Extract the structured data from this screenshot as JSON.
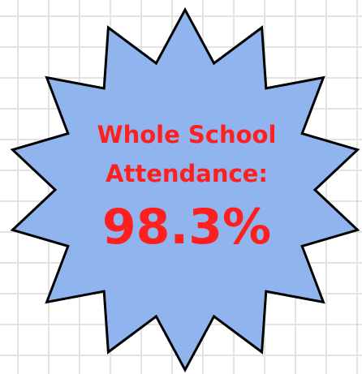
{
  "badge": {
    "lines": [
      "Whole School",
      "Attendance:"
    ],
    "value": "98.3%"
  }
}
